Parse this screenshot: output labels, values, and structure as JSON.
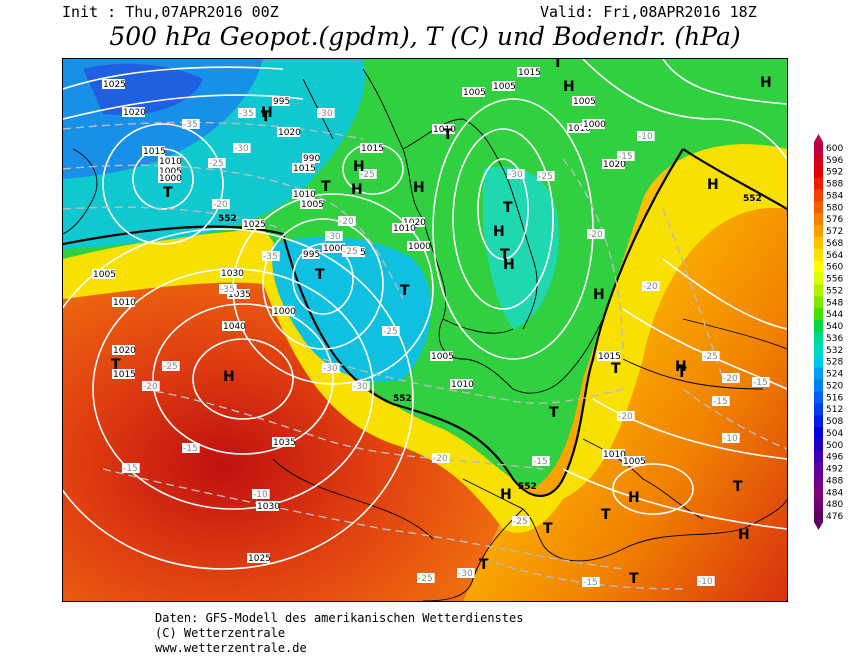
{
  "header": {
    "init": "Init : Thu,07APR2016 00Z",
    "valid": "Valid: Fri,08APR2016 18Z",
    "title": "500 hPa Geopot.(gpdm), T (C) und Bodendr. (hPa)"
  },
  "footer": {
    "line1": "Daten: GFS-Modell des amerikanischen Wetterdienstes",
    "line2": "(C) Wetterzentrale",
    "line3": "www.wetterzentrale.de"
  },
  "legend": {
    "values": [
      "600",
      "596",
      "592",
      "588",
      "584",
      "580",
      "576",
      "572",
      "568",
      "564",
      "560",
      "556",
      "552",
      "548",
      "544",
      "540",
      "536",
      "532",
      "528",
      "524",
      "520",
      "516",
      "512",
      "508",
      "504",
      "500",
      "496",
      "492",
      "488",
      "484",
      "480",
      "476"
    ],
    "colors": [
      "#c00040",
      "#d00020",
      "#e00000",
      "#e82000",
      "#f04000",
      "#f46000",
      "#f88000",
      "#fca000",
      "#ffc000",
      "#ffe000",
      "#ffff00",
      "#e0ff00",
      "#b0f000",
      "#80e800",
      "#40e000",
      "#00d840",
      "#00d890",
      "#00d8c0",
      "#00c8e8",
      "#00a0f0",
      "#0080f0",
      "#0060f0",
      "#0040e8",
      "#0020e0",
      "#0000d8",
      "#2000c0",
      "#4000b0",
      "#6000a0",
      "#700090",
      "#800080",
      "#700070",
      "#600060"
    ]
  },
  "map_labels": {
    "pressure_highs": [
      "H",
      "H",
      "H",
      "H",
      "H",
      "H",
      "H",
      "H",
      "H",
      "H",
      "H",
      "H",
      "H",
      "H",
      "H"
    ],
    "pressure_lows": [
      "T",
      "T",
      "T",
      "T",
      "T",
      "T",
      "T",
      "T",
      "T",
      "T",
      "T",
      "T",
      "T",
      "T",
      "T",
      "T",
      "T",
      "T"
    ],
    "isobar_values": [
      "1025",
      "1020",
      "1015",
      "1010",
      "1005",
      "1000",
      "995",
      "990",
      "1025",
      "1030",
      "1035",
      "1040",
      "1035",
      "1030",
      "1025",
      "1020",
      "1015",
      "1010",
      "1005",
      "1000",
      "995",
      "1020",
      "1015",
      "1010",
      "1005",
      "1000",
      "1015",
      "1010",
      "1005",
      "1000",
      "1020",
      "1015",
      "1010",
      "1005",
      "1010",
      "1005",
      "1015",
      "1010",
      "1005",
      "1000",
      "1020",
      "1015",
      "1010",
      "1005"
    ],
    "temp_values": [
      "-35",
      "-35",
      "-30",
      "-25",
      "-20",
      "-35",
      "-35",
      "-30",
      "-25",
      "-30",
      "-25",
      "-20",
      "-25",
      "-30",
      "-30",
      "-25",
      "-20",
      "-15",
      "-15",
      "-10",
      "-20",
      "-15",
      "-15",
      "-10",
      "-20",
      "-25",
      "-30",
      "-25",
      "-20",
      "-15",
      "-15",
      "-10",
      "-20",
      "-25",
      "-30",
      "-25",
      "-20",
      "-15",
      "-10"
    ],
    "geopot_values": [
      "552",
      "552",
      "552",
      "552"
    ]
  }
}
